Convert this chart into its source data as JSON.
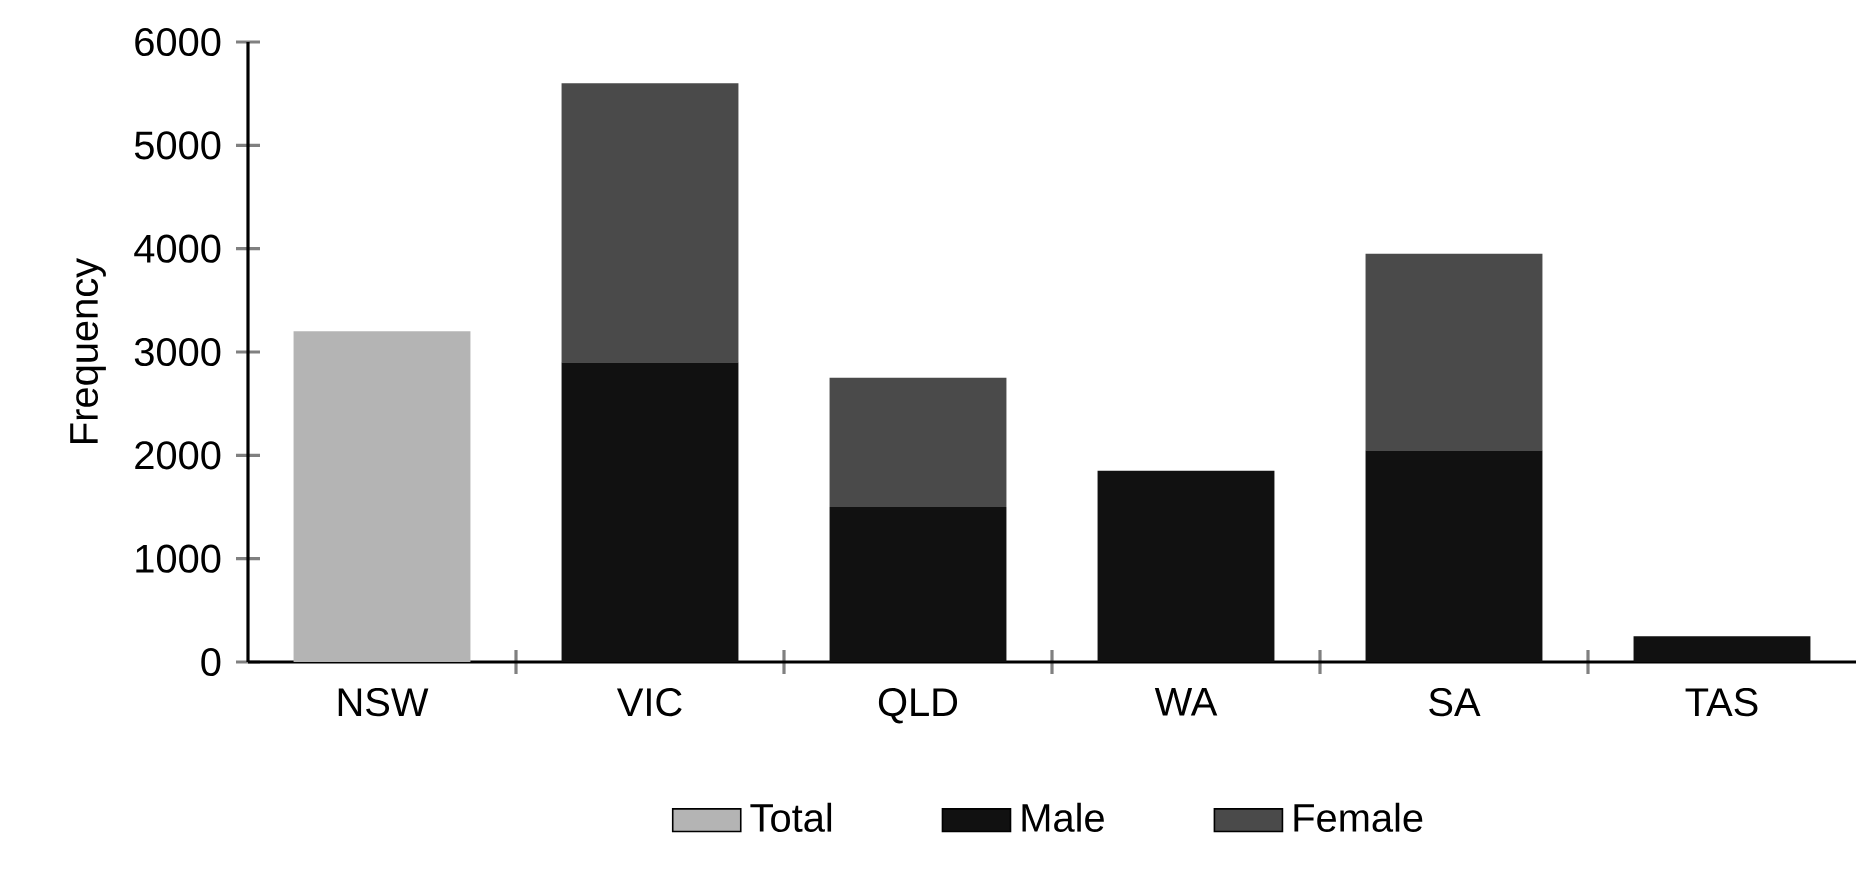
{
  "chart_data": {
    "type": "bar",
    "stacked": true,
    "ylabel": "Frequency",
    "categories": [
      "NSW",
      "VIC",
      "QLD",
      "WA",
      "SA",
      "TAS"
    ],
    "series": [
      {
        "name": "Total",
        "color": "#b4b4b4",
        "values": [
          3200,
          null,
          null,
          null,
          null,
          null
        ]
      },
      {
        "name": "Male",
        "color": "#111111",
        "values": [
          null,
          2900,
          1500,
          1850,
          2050,
          250
        ]
      },
      {
        "name": "Female",
        "color": "#4a4a4a",
        "values": [
          null,
          2700,
          1250,
          null,
          1900,
          null
        ]
      }
    ],
    "ylim": [
      0,
      6000
    ],
    "yticks": [
      0,
      1000,
      2000,
      3000,
      4000,
      5000,
      6000
    ],
    "grid": false,
    "legend": "bottom"
  }
}
